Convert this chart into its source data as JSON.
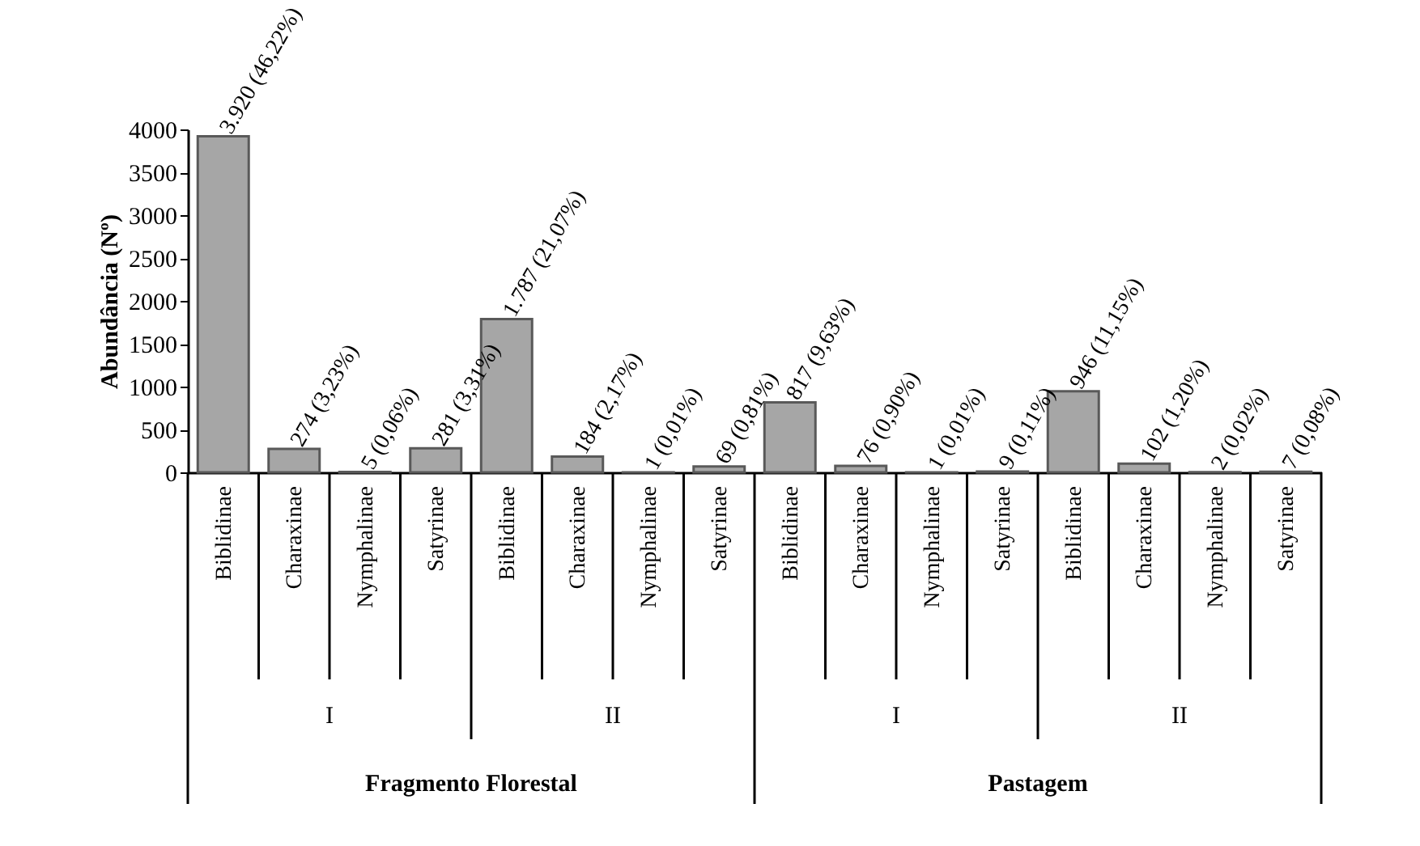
{
  "chart_data": {
    "type": "bar",
    "ylabel": "Abundância (Nº)",
    "categories": [
      "Biblidinae",
      "Charaxinae",
      "Nymphalinae",
      "Satyrinae",
      "Biblidinae",
      "Charaxinae",
      "Nymphalinae",
      "Satyrinae",
      "Biblidinae",
      "Charaxinae",
      "Nymphalinae",
      "Satyrinae",
      "Biblidinae",
      "Charaxinae",
      "Nymphalinae",
      "Satyrinae"
    ],
    "values": [
      3920,
      274,
      5,
      281,
      1787,
      184,
      1,
      69,
      817,
      76,
      1,
      9,
      946,
      102,
      2,
      7
    ],
    "value_labels": [
      "3.920 (46,22%)",
      "274 (3,23%)",
      "5 (0,06%)",
      "281 (3,31%)",
      "1.787 (21,07%)",
      "184 (2,17%)",
      "1 (0,01%)",
      "69 (0,81%)",
      "817 (9,63%)",
      "76 (0,90%)",
      "1 (0,01%)",
      "9 (0,11%)",
      "946 (11,15%)",
      "102 (1,20%)",
      "2 (0,02%)",
      "7 (0,08%)"
    ],
    "color": "#a6a6a6",
    "ylim": [
      0,
      4000
    ],
    "yticks": [
      0,
      500,
      1000,
      1500,
      2000,
      2500,
      3000,
      3500,
      4000
    ],
    "annotations": [
      "I",
      "II",
      "I",
      "II",
      "Fragmento Florestal",
      "Pastagem"
    ],
    "grid": false
  }
}
